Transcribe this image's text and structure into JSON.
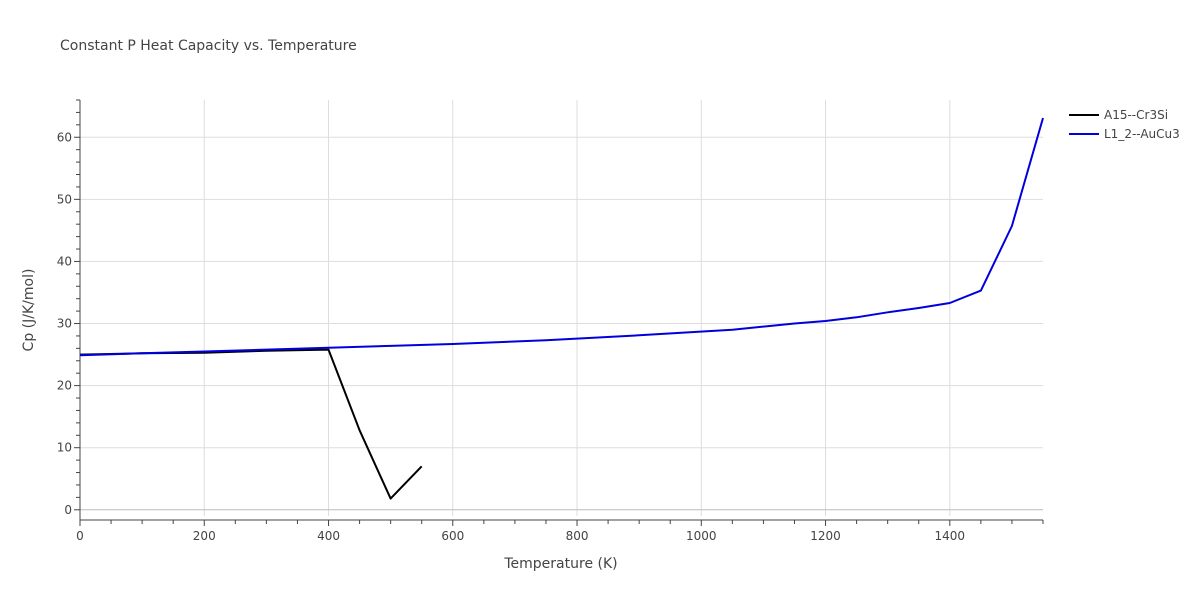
{
  "chart_data": {
    "type": "line",
    "title": "Constant P Heat Capacity vs. Temperature",
    "xlabel": "Temperature (K)",
    "ylabel": "Cp (J/K/mol)",
    "xlim": [
      0,
      1550
    ],
    "ylim": [
      -1,
      66
    ],
    "xticks": [
      0,
      200,
      400,
      600,
      800,
      1000,
      1200,
      1400
    ],
    "yticks": [
      0,
      10,
      20,
      30,
      40,
      50,
      60
    ],
    "grid": true,
    "legend_position": "top-right",
    "series": [
      {
        "name": "A15--Cr3Si",
        "color": "#000000",
        "x": [
          0,
          100,
          200,
          300,
          400,
          450,
          500,
          550
        ],
        "y": [
          25.0,
          25.2,
          25.3,
          25.6,
          25.8,
          12.8,
          1.8,
          7.0
        ]
      },
      {
        "name": "L1_2--AuCu3",
        "color": "#0000dd",
        "x": [
          0,
          100,
          200,
          300,
          400,
          500,
          600,
          750,
          900,
          1050,
          1100,
          1150,
          1200,
          1250,
          1300,
          1350,
          1400,
          1450,
          1500,
          1550
        ],
        "y": [
          24.9,
          25.2,
          25.5,
          25.8,
          26.1,
          26.4,
          26.7,
          27.3,
          28.1,
          29.0,
          29.5,
          30.0,
          30.4,
          31.0,
          31.8,
          32.5,
          33.3,
          35.3,
          45.7,
          63.1
        ]
      }
    ]
  }
}
